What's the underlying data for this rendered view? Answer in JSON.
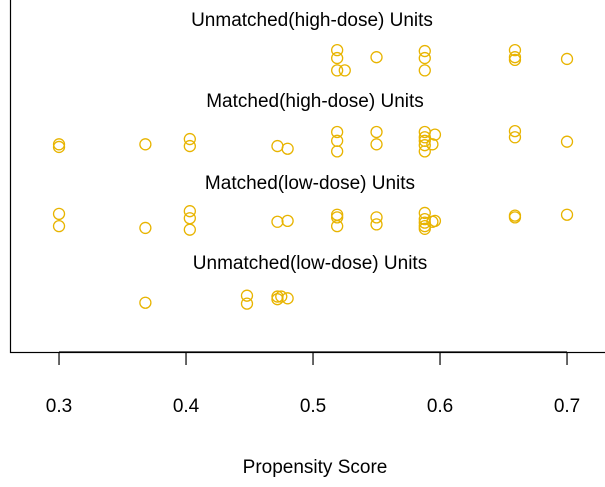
{
  "chart_data": {
    "type": "scatter",
    "x_label": "Propensity Score",
    "xlim": [
      0.2614,
      0.7299
    ],
    "xticks": [
      0.3,
      0.4,
      0.5,
      0.6,
      0.7
    ],
    "ylim": [
      0,
      4
    ],
    "color": "#e8b400",
    "series": [
      {
        "name": "Unmatched(high-dose) Units",
        "x": [
          0.519,
          0.519,
          0.519,
          0.525,
          0.55,
          0.588,
          0.588,
          0.588,
          0.659,
          0.659,
          0.659,
          0.7
        ],
        "y": [
          3.43,
          3.34,
          3.2,
          3.2,
          3.35,
          3.42,
          3.34,
          3.2,
          3.43,
          3.35,
          3.32,
          3.33
        ]
      },
      {
        "name": "Matched(high-dose) Units",
        "x": [
          0.3,
          0.3,
          0.368,
          0.403,
          0.403,
          0.472,
          0.48,
          0.519,
          0.519,
          0.519,
          0.55,
          0.55,
          0.588,
          0.588,
          0.588,
          0.588,
          0.588,
          0.594,
          0.596,
          0.659,
          0.659,
          0.7
        ],
        "y": [
          2.36,
          2.33,
          2.36,
          2.42,
          2.34,
          2.34,
          2.31,
          2.5,
          2.4,
          2.28,
          2.5,
          2.36,
          2.5,
          2.44,
          2.4,
          2.35,
          2.28,
          2.36,
          2.47,
          2.51,
          2.44,
          2.39
        ]
      },
      {
        "name": "Matched(low-dose) Units",
        "x": [
          0.3,
          0.3,
          0.368,
          0.403,
          0.403,
          0.403,
          0.472,
          0.48,
          0.519,
          0.519,
          0.519,
          0.55,
          0.55,
          0.588,
          0.588,
          0.588,
          0.588,
          0.588,
          0.594,
          0.596,
          0.659,
          0.659,
          0.7
        ],
        "y": [
          1.57,
          1.43,
          1.41,
          1.6,
          1.52,
          1.39,
          1.48,
          1.49,
          1.56,
          1.53,
          1.43,
          1.53,
          1.45,
          1.58,
          1.51,
          1.47,
          1.43,
          1.4,
          1.48,
          1.49,
          1.55,
          1.53,
          1.56
        ]
      },
      {
        "name": "Unmatched(low-dose) Units",
        "x": [
          0.368,
          0.448,
          0.448,
          0.472,
          0.472,
          0.475,
          0.48
        ],
        "y": [
          0.56,
          0.64,
          0.55,
          0.63,
          0.6,
          0.63,
          0.61
        ]
      }
    ]
  }
}
